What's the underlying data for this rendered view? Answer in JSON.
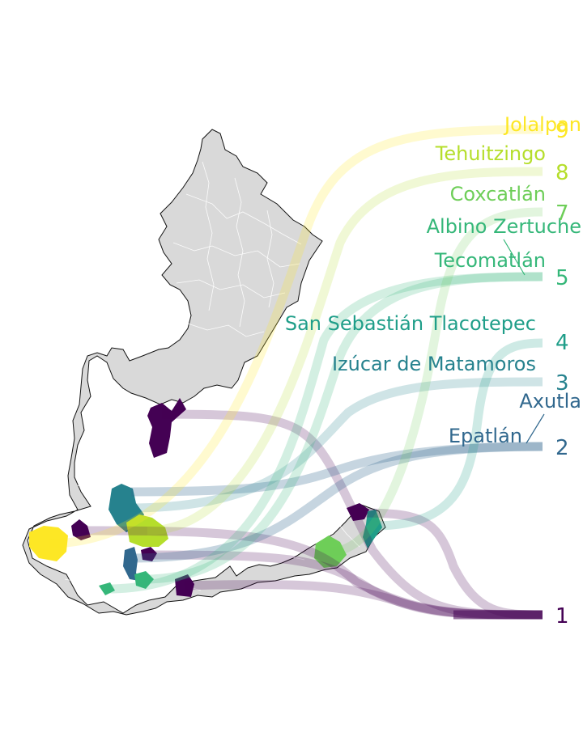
{
  "map": {
    "base_fill": "#d9d9d9",
    "border_color": "#111111",
    "municipality_line_color": "#ffffff"
  },
  "ranking": [
    {
      "rank": "1",
      "name": "",
      "color": "#440154",
      "flow_count": 6
    },
    {
      "rank": "2",
      "name": "Epatlán",
      "color": "#31688e"
    },
    {
      "rank": "2",
      "name": "Axutla",
      "color": "#31688e"
    },
    {
      "rank": "3",
      "name": "Izúcar de Matamoros",
      "color": "#26828e"
    },
    {
      "rank": "4",
      "name": "San Sebastián Tlacotepec",
      "color": "#1f9e89"
    },
    {
      "rank": "5",
      "name": "Tecomatlán",
      "color": "#35b779"
    },
    {
      "rank": "5",
      "name": "Albino Zertuche",
      "color": "#35b779"
    },
    {
      "rank": "7",
      "name": "Coxcatlán",
      "color": "#6ece58"
    },
    {
      "rank": "8",
      "name": "Tehuitzingo",
      "color": "#b5de2b"
    },
    {
      "rank": "9",
      "name": "Jolalpan",
      "color": "#fde725"
    }
  ],
  "rank_numbers": [
    "1",
    "2",
    "3",
    "4",
    "5",
    "7",
    "8",
    "9"
  ],
  "palette": [
    "#440154",
    "#31688e",
    "#26828e",
    "#1f9e89",
    "#35b779",
    "#6ece58",
    "#b5de2b",
    "#fde725"
  ]
}
